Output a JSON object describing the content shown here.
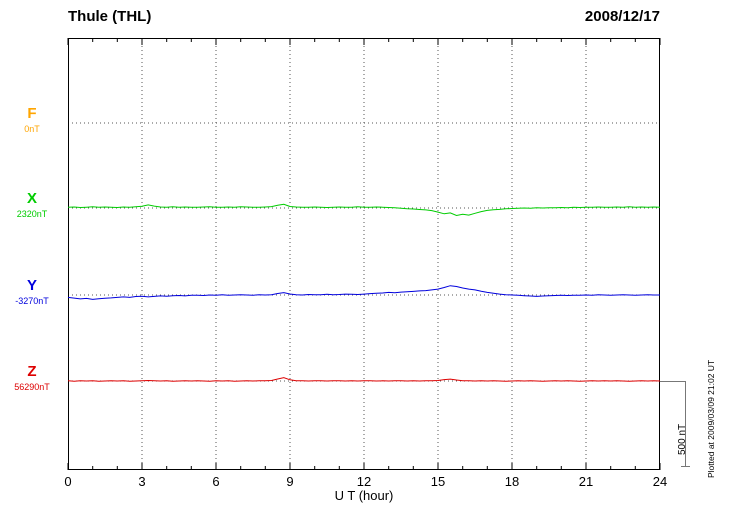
{
  "header": {
    "title": "Thule (THL)",
    "date": "2008/12/17"
  },
  "labels": {
    "xlabel": "U T (hour)",
    "scalebar": "500 nT",
    "plotted_at": "Plotted at 2009/03/09 21:02 UT"
  },
  "chart_data": {
    "type": "line",
    "title": "Thule (THL) magnetogram 2008/12/17",
    "xlabel": "U T (hour)",
    "xlim": [
      0,
      24
    ],
    "x_ticks": [
      0,
      3,
      6,
      9,
      12,
      15,
      18,
      21,
      24
    ],
    "grid": "dotted vertical at 3-hour marks, dotted horizontal baseline per component",
    "sample_step_hours": 0.25,
    "scalebar_nT": 500,
    "series": [
      {
        "name": "F",
        "color": "#ffa500",
        "baseline_label": "0nT",
        "baseline_nT": 0,
        "values": null
      },
      {
        "name": "X",
        "color": "#00cc00",
        "baseline_label": "2320nT",
        "baseline_nT": 2320,
        "values": [
          4,
          6,
          3,
          5,
          7,
          4,
          6,
          5,
          3,
          6,
          4,
          7,
          10,
          18,
          11,
          6,
          5,
          7,
          4,
          6,
          5,
          4,
          6,
          7,
          5,
          4,
          6,
          5,
          7,
          6,
          5,
          4,
          6,
          8,
          16,
          22,
          9,
          6,
          5,
          4,
          6,
          5,
          3,
          5,
          6,
          4,
          5,
          7,
          5,
          4,
          6,
          5,
          3,
          1,
          -1,
          -4,
          -6,
          -9,
          -11,
          -15,
          -24,
          -34,
          -29,
          -44,
          -37,
          -42,
          -31,
          -21,
          -14,
          -10,
          -8,
          -5,
          -3,
          -2,
          0,
          -1,
          1,
          0,
          2,
          1,
          3,
          2,
          4,
          3,
          5,
          4,
          6,
          5,
          4,
          6,
          5,
          7,
          5,
          6,
          4,
          6,
          5
        ]
      },
      {
        "name": "Y",
        "color": "#0000dd",
        "baseline_label": "-3270nT",
        "baseline_nT": -3270,
        "values": [
          -14,
          -18,
          -23,
          -20,
          -26,
          -22,
          -19,
          -17,
          -14,
          -11,
          -14,
          -9,
          -7,
          -11,
          -8,
          -5,
          -7,
          -4,
          -3,
          -5,
          -2,
          -1,
          -3,
          0,
          -2,
          1,
          -1,
          0,
          2,
          0,
          -1,
          1,
          0,
          2,
          9,
          14,
          6,
          2,
          0,
          3,
          1,
          2,
          4,
          2,
          3,
          5,
          4,
          3,
          5,
          8,
          10,
          12,
          15,
          13,
          17,
          19,
          21,
          24,
          26,
          30,
          35,
          44,
          55,
          50,
          41,
          35,
          30,
          22,
          15,
          10,
          5,
          2,
          0,
          -2,
          -4,
          -6,
          -8,
          -6,
          -4,
          -3,
          -2,
          -3,
          -1,
          -2,
          0,
          -1,
          1,
          0,
          -1,
          0,
          1,
          0,
          -1,
          0,
          1,
          0,
          0
        ]
      },
      {
        "name": "Z",
        "color": "#dd0000",
        "baseline_label": "56290nT",
        "baseline_nT": 56290,
        "values": [
          1,
          -1,
          2,
          0,
          1,
          -1,
          0,
          2,
          0,
          1,
          -1,
          0,
          2,
          3,
          1,
          0,
          1,
          -1,
          0,
          1,
          0,
          2,
          0,
          -1,
          1,
          0,
          1,
          -1,
          0,
          1,
          0,
          2,
          1,
          3,
          12,
          20,
          7,
          2,
          1,
          0,
          2,
          1,
          0,
          1,
          2,
          0,
          1,
          0,
          1,
          2,
          0,
          1,
          0,
          1,
          2,
          0,
          1,
          0,
          2,
          1,
          3,
          8,
          11,
          6,
          2,
          1,
          0,
          1,
          0,
          1,
          0,
          -1,
          0,
          1,
          0,
          1,
          0,
          -1,
          0,
          1,
          0,
          1,
          0,
          -1,
          0,
          1,
          0,
          1,
          0,
          1,
          0,
          -1,
          0,
          1,
          0,
          1,
          0
        ]
      }
    ]
  }
}
